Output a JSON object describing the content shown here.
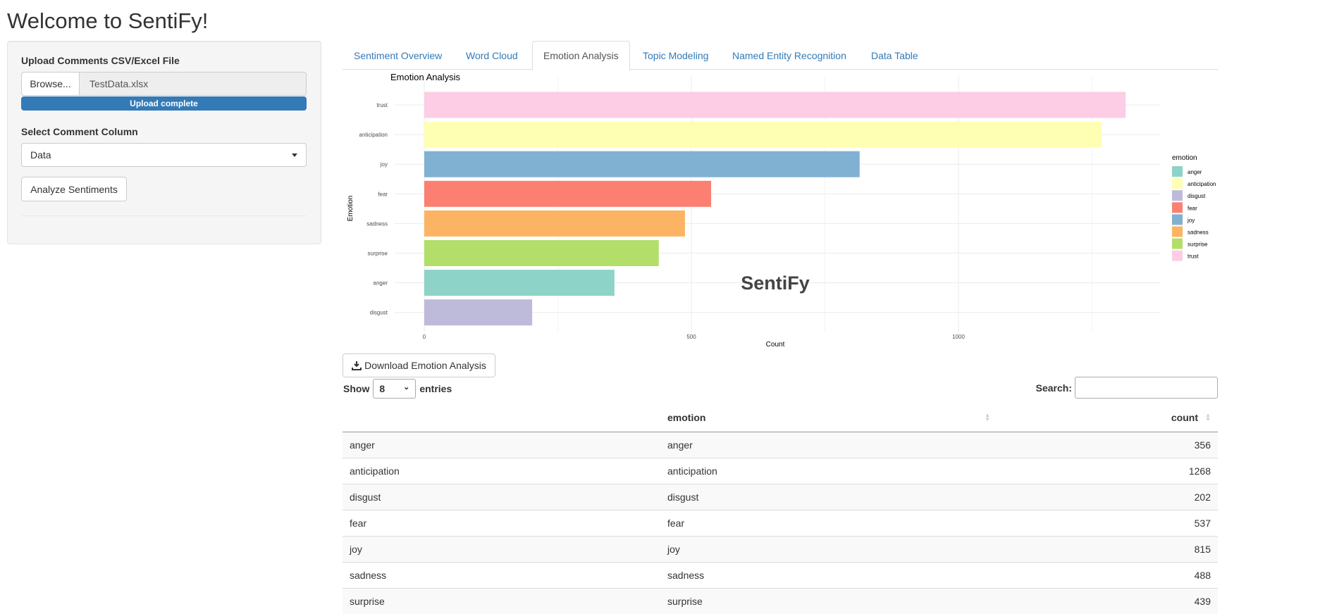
{
  "page_title": "Welcome to SentiFy!",
  "sidebar": {
    "upload_label": "Upload Comments CSV/Excel File",
    "browse_label": "Browse...",
    "file_name": "TestData.xlsx",
    "upload_status": "Upload complete",
    "upload_progress": 1.0,
    "column_label": "Select Comment Column",
    "column_value": "Data",
    "analyze_label": "Analyze Sentiments"
  },
  "tabs": [
    {
      "label": "Sentiment Overview"
    },
    {
      "label": "Word Cloud"
    },
    {
      "label": "Emotion Analysis",
      "active": true
    },
    {
      "label": "Topic Modeling"
    },
    {
      "label": "Named Entity Recognition"
    },
    {
      "label": "Data Table"
    }
  ],
  "chart_data": {
    "type": "bar",
    "orientation": "horizontal",
    "title": "Emotion Analysis",
    "xlabel": "Count",
    "ylabel": "Emotion",
    "watermark": "SentiFy",
    "categories": [
      "trust",
      "anticipation",
      "joy",
      "fear",
      "sadness",
      "surprise",
      "anger",
      "disgust"
    ],
    "values": [
      1313,
      1268,
      815,
      537,
      488,
      439,
      356,
      202
    ],
    "colors": {
      "anger": "#8DD3C7",
      "anticipation": "#FFFFB3",
      "disgust": "#BEBADA",
      "fear": "#FB8072",
      "joy": "#80B1D3",
      "sadness": "#FDB462",
      "surprise": "#B3DE69",
      "trust": "#FCCDE5"
    },
    "xticks": [
      0,
      500,
      1000
    ],
    "xlim": [
      -150,
      1380
    ],
    "grid": true,
    "legend": {
      "title": "emotion",
      "placement": "right",
      "entries": [
        "anger",
        "anticipation",
        "disgust",
        "fear",
        "joy",
        "sadness",
        "surprise",
        "trust"
      ]
    }
  },
  "download_label": "Download Emotion Analysis",
  "table": {
    "show_label": "Show",
    "entries_value": "8",
    "entries_label": "entries",
    "search_label": "Search:",
    "search_value": "",
    "columns": [
      "",
      "emotion",
      "count"
    ],
    "rows": [
      [
        "anger",
        "anger",
        "356"
      ],
      [
        "anticipation",
        "anticipation",
        "1268"
      ],
      [
        "disgust",
        "disgust",
        "202"
      ],
      [
        "fear",
        "fear",
        "537"
      ],
      [
        "joy",
        "joy",
        "815"
      ],
      [
        "sadness",
        "sadness",
        "488"
      ],
      [
        "surprise",
        "surprise",
        "439"
      ]
    ]
  }
}
